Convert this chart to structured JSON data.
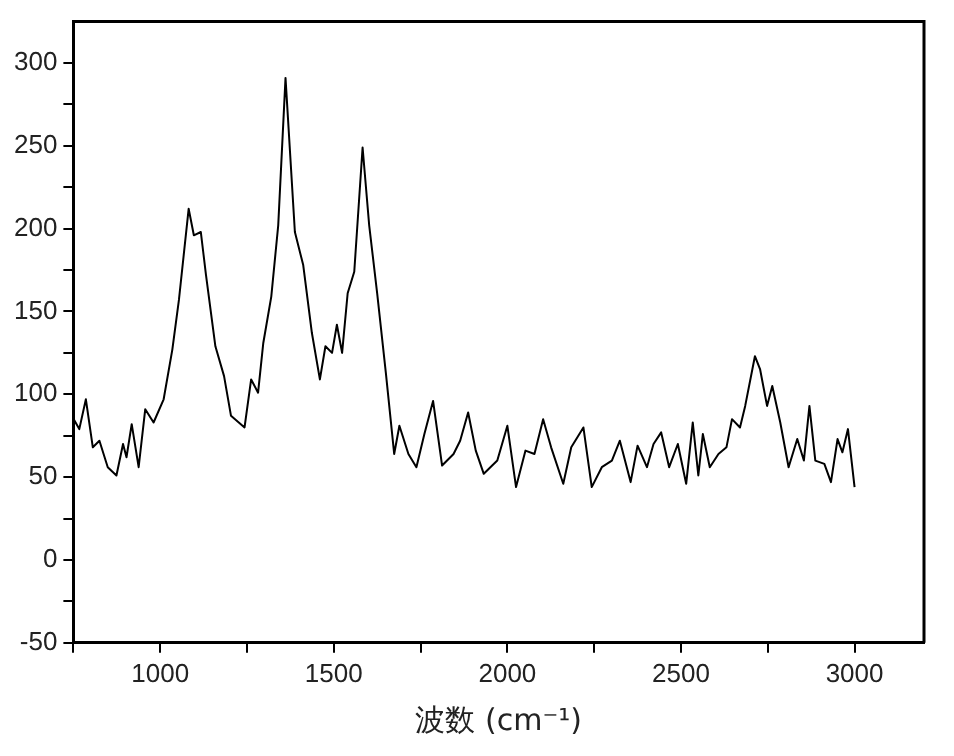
{
  "chart_data": {
    "type": "line",
    "xlabel": "波数 (cm⁻¹)",
    "xlim": [
      750,
      3200
    ],
    "ylim": [
      -50,
      325
    ],
    "xticks": [
      {
        "value": 750,
        "label": null
      },
      1000,
      {
        "value": 1250,
        "label": null
      },
      1500,
      {
        "value": 1750,
        "label": null
      },
      2000,
      {
        "value": 2250,
        "label": null
      },
      2500,
      {
        "value": 2750,
        "label": null
      },
      3000
    ],
    "yticks": [
      -50,
      {
        "value": -25,
        "label": null
      },
      0,
      {
        "value": 25,
        "label": null
      },
      50,
      {
        "value": 75,
        "label": null
      },
      100,
      {
        "value": 125,
        "label": null
      },
      150,
      {
        "value": 175,
        "label": null
      },
      200,
      {
        "value": 225,
        "label": null
      },
      250,
      {
        "value": 275,
        "label": null
      },
      300
    ],
    "grid": false,
    "legend": false,
    "marker": "none",
    "line_style": "solid",
    "series": [
      {
        "color": "#000000",
        "x": [
          751,
          767,
          786,
          806,
          825,
          849,
          874,
          893,
          903,
          918,
          938,
          957,
          981,
          1010,
          1035,
          1054,
          1082,
          1097,
          1117,
          1132,
          1159,
          1184,
          1204,
          1243,
          1262,
          1282,
          1297,
          1320,
          1340,
          1361,
          1388,
          1412,
          1437,
          1460,
          1476,
          1495,
          1509,
          1524,
          1540,
          1559,
          1583,
          1602,
          1625,
          1650,
          1674,
          1689,
          1715,
          1738,
          1761,
          1786,
          1812,
          1845,
          1864,
          1887,
          1909,
          1932,
          1971,
          2000,
          2025,
          2052,
          2078,
          2103,
          2126,
          2161,
          2184,
          2219,
          2243,
          2272,
          2301,
          2324,
          2355,
          2375,
          2402,
          2421,
          2443,
          2466,
          2491,
          2515,
          2534,
          2550,
          2563,
          2583,
          2608,
          2631,
          2647,
          2670,
          2685,
          2713,
          2728,
          2748,
          2763,
          2786,
          2810,
          2835,
          2854,
          2870,
          2887,
          2913,
          2932,
          2951,
          2965,
          2981,
          3000
        ],
        "values": [
          85,
          79,
          97,
          68,
          72,
          56,
          51,
          70,
          62,
          82,
          56,
          91,
          83,
          97,
          127,
          157,
          212,
          196,
          198,
          172,
          129,
          111,
          87,
          80,
          109,
          101,
          131,
          159,
          202,
          291,
          198,
          178,
          137,
          109,
          129,
          125,
          142,
          125,
          161,
          174,
          249,
          202,
          161,
          113,
          64,
          81,
          64,
          56,
          76,
          96,
          57,
          64,
          72,
          89,
          66,
          52,
          60,
          81,
          44,
          66,
          64,
          85,
          68,
          46,
          68,
          80,
          44,
          56,
          60,
          72,
          47,
          69,
          56,
          70,
          77,
          56,
          70,
          46,
          83,
          51,
          76,
          56,
          64,
          68,
          85,
          80,
          93,
          123,
          115,
          93,
          105,
          83,
          56,
          73,
          60,
          93,
          60,
          58,
          47,
          73,
          65,
          79,
          44
        ]
      }
    ]
  }
}
